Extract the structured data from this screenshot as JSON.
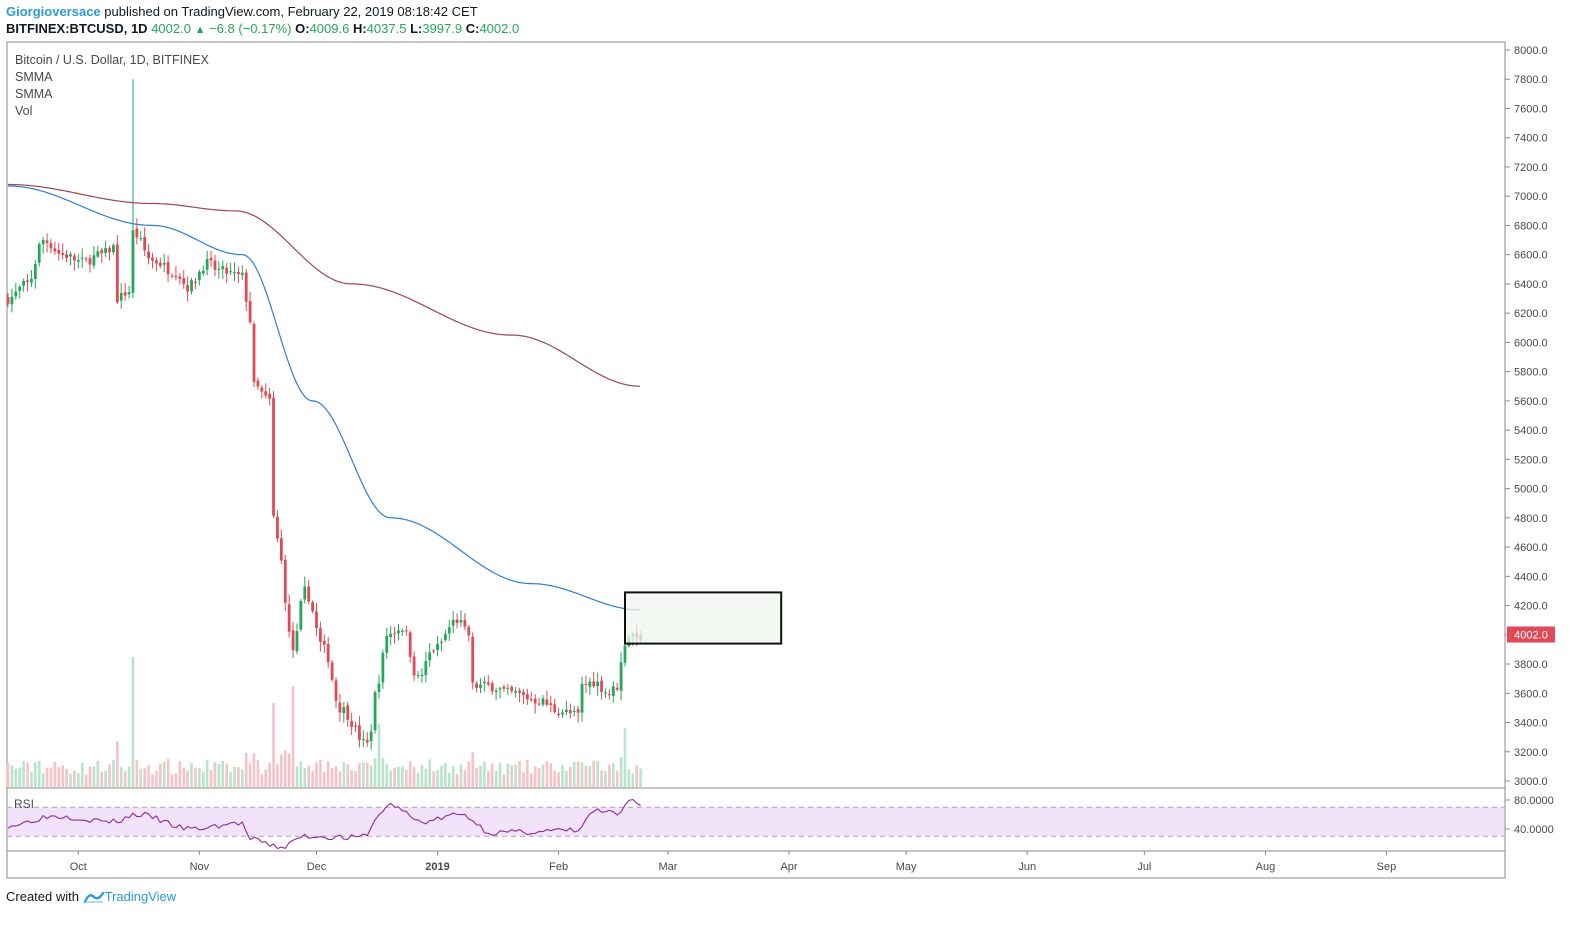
{
  "header": {
    "author": "Giorgioversace",
    "published_text": " published on TradingView.com, February 22, 2019 08:18:42 CET",
    "symbol": "BITFINEX:BTCUSD, 1D",
    "last": "4002.0",
    "change": "−6.8 (−0.17%)",
    "o_label": "O:",
    "o_value": "4009.6",
    "h_label": "H:",
    "h_value": "4037.5",
    "l_label": "L:",
    "l_value": "3997.9",
    "c_label": "C:",
    "c_value": "4002.0"
  },
  "legend": {
    "title": "Bitcoin / U.S. Dollar, 1D, BITFINEX",
    "items": [
      "SMMA",
      "SMMA",
      "Vol"
    ]
  },
  "rsi_label": "RSI",
  "price_tag": "4002.0",
  "footer": {
    "prefix": "Created with",
    "brand": "TradingView"
  },
  "colors": {
    "up": "#26a65b",
    "down": "#e04a56",
    "vol_up": "#b9e3cc",
    "vol_down": "#f7c2c6",
    "smma_fast": "#2f7dd6",
    "smma_slow": "#9b4660",
    "rsi_line": "#8a2a9e",
    "rsi_band": "#f2e3fb",
    "author": "#2b9bd8",
    "box_fill": "#eff6ee"
  },
  "chart_data": {
    "type": "candlestick",
    "price_axis": {
      "min": 3000,
      "max": 8000,
      "ticks": [
        8000,
        7800,
        7600,
        7400,
        7200,
        7000,
        6800,
        6600,
        6400,
        6200,
        6000,
        5800,
        5600,
        5400,
        5200,
        5000,
        4800,
        4600,
        4400,
        4200,
        4000,
        3800,
        3600,
        3400,
        3200,
        3000
      ]
    },
    "rsi_axis": {
      "ticks": [
        80,
        40
      ],
      "band": [
        30,
        70
      ]
    },
    "time_axis": [
      "Oct",
      "Nov",
      "Dec",
      "2019",
      "Feb",
      "Mar",
      "Apr",
      "May",
      "Jun",
      "Jul",
      "Aug",
      "Sep"
    ],
    "anchors": [
      [
        "2018-09-13",
        6300
      ],
      [
        "2018-09-18",
        6400
      ],
      [
        "2018-09-22",
        6700
      ],
      [
        "2018-09-27",
        6600
      ],
      [
        "2018-10-02",
        6550
      ],
      [
        "2018-10-07",
        6600
      ],
      [
        "2018-10-10",
        6650
      ],
      [
        "2018-10-11",
        6300
      ],
      [
        "2018-10-14",
        6350
      ],
      [
        "2018-10-15",
        6750
      ],
      [
        "2018-10-20",
        6560
      ],
      [
        "2018-10-26",
        6480
      ],
      [
        "2018-10-29",
        6380
      ],
      [
        "2018-11-03",
        6540
      ],
      [
        "2018-11-06",
        6490
      ],
      [
        "2018-11-12",
        6450
      ],
      [
        "2018-11-14",
        6150
      ],
      [
        "2018-11-15",
        5700
      ],
      [
        "2018-11-19",
        5600
      ],
      [
        "2018-11-20",
        4800
      ],
      [
        "2018-11-22",
        4500
      ],
      [
        "2018-11-24",
        4000
      ],
      [
        "2018-11-25",
        3900
      ],
      [
        "2018-11-28",
        4300
      ],
      [
        "2018-12-03",
        3900
      ],
      [
        "2018-12-07",
        3500
      ],
      [
        "2018-12-14",
        3250
      ],
      [
        "2018-12-17",
        3700
      ],
      [
        "2018-12-19",
        4000
      ],
      [
        "2018-12-23",
        4050
      ],
      [
        "2018-12-27",
        3700
      ],
      [
        "2018-12-31",
        3900
      ],
      [
        "2019-01-06",
        4100
      ],
      [
        "2019-01-09",
        4000
      ],
      [
        "2019-01-10",
        3650
      ],
      [
        "2019-01-14",
        3650
      ],
      [
        "2019-01-20",
        3600
      ],
      [
        "2019-01-27",
        3550
      ],
      [
        "2019-02-01",
        3480
      ],
      [
        "2019-02-06",
        3450
      ],
      [
        "2019-02-07",
        3650
      ],
      [
        "2019-02-10",
        3680
      ],
      [
        "2019-02-14",
        3600
      ],
      [
        "2019-02-16",
        3650
      ],
      [
        "2019-02-18",
        3950
      ],
      [
        "2019-02-19",
        4000
      ],
      [
        "2019-02-22",
        4002
      ]
    ],
    "volume_spikes": [
      [
        "2018-10-15",
        0.93
      ],
      [
        "2018-11-20",
        0.6
      ],
      [
        "2018-11-25",
        0.72
      ],
      [
        "2018-12-17",
        0.45
      ],
      [
        "2019-02-18",
        0.42
      ]
    ],
    "smma_fast_anchors": [
      [
        "2018-09-13",
        7070
      ],
      [
        "2018-10-20",
        6800
      ],
      [
        "2018-11-12",
        6600
      ],
      [
        "2018-11-30",
        5600
      ],
      [
        "2018-12-20",
        4800
      ],
      [
        "2019-01-25",
        4350
      ],
      [
        "2019-02-22",
        4170
      ]
    ],
    "smma_slow_anchors": [
      [
        "2018-09-13",
        7080
      ],
      [
        "2018-10-20",
        6950
      ],
      [
        "2018-11-10",
        6900
      ],
      [
        "2018-12-10",
        6400
      ],
      [
        "2019-01-20",
        6050
      ],
      [
        "2019-02-22",
        5700
      ]
    ],
    "rsi_anchors": [
      [
        "2018-09-13",
        45
      ],
      [
        "2018-09-25",
        58
      ],
      [
        "2018-10-10",
        50
      ],
      [
        "2018-10-16",
        60
      ],
      [
        "2018-10-30",
        40
      ],
      [
        "2018-11-12",
        48
      ],
      [
        "2018-11-14",
        25
      ],
      [
        "2018-11-22",
        15
      ],
      [
        "2018-11-28",
        30
      ],
      [
        "2018-12-12",
        28
      ],
      [
        "2018-12-20",
        73
      ],
      [
        "2018-12-28",
        50
      ],
      [
        "2019-01-07",
        60
      ],
      [
        "2019-01-15",
        35
      ],
      [
        "2019-02-06",
        38
      ],
      [
        "2019-02-10",
        65
      ],
      [
        "2019-02-17",
        60
      ],
      [
        "2019-02-19",
        80
      ],
      [
        "2019-02-22",
        75
      ]
    ],
    "annotation_box": {
      "start": "2019-02-18",
      "end": "2019-03-30",
      "top": 4290,
      "bottom": 3940
    }
  }
}
